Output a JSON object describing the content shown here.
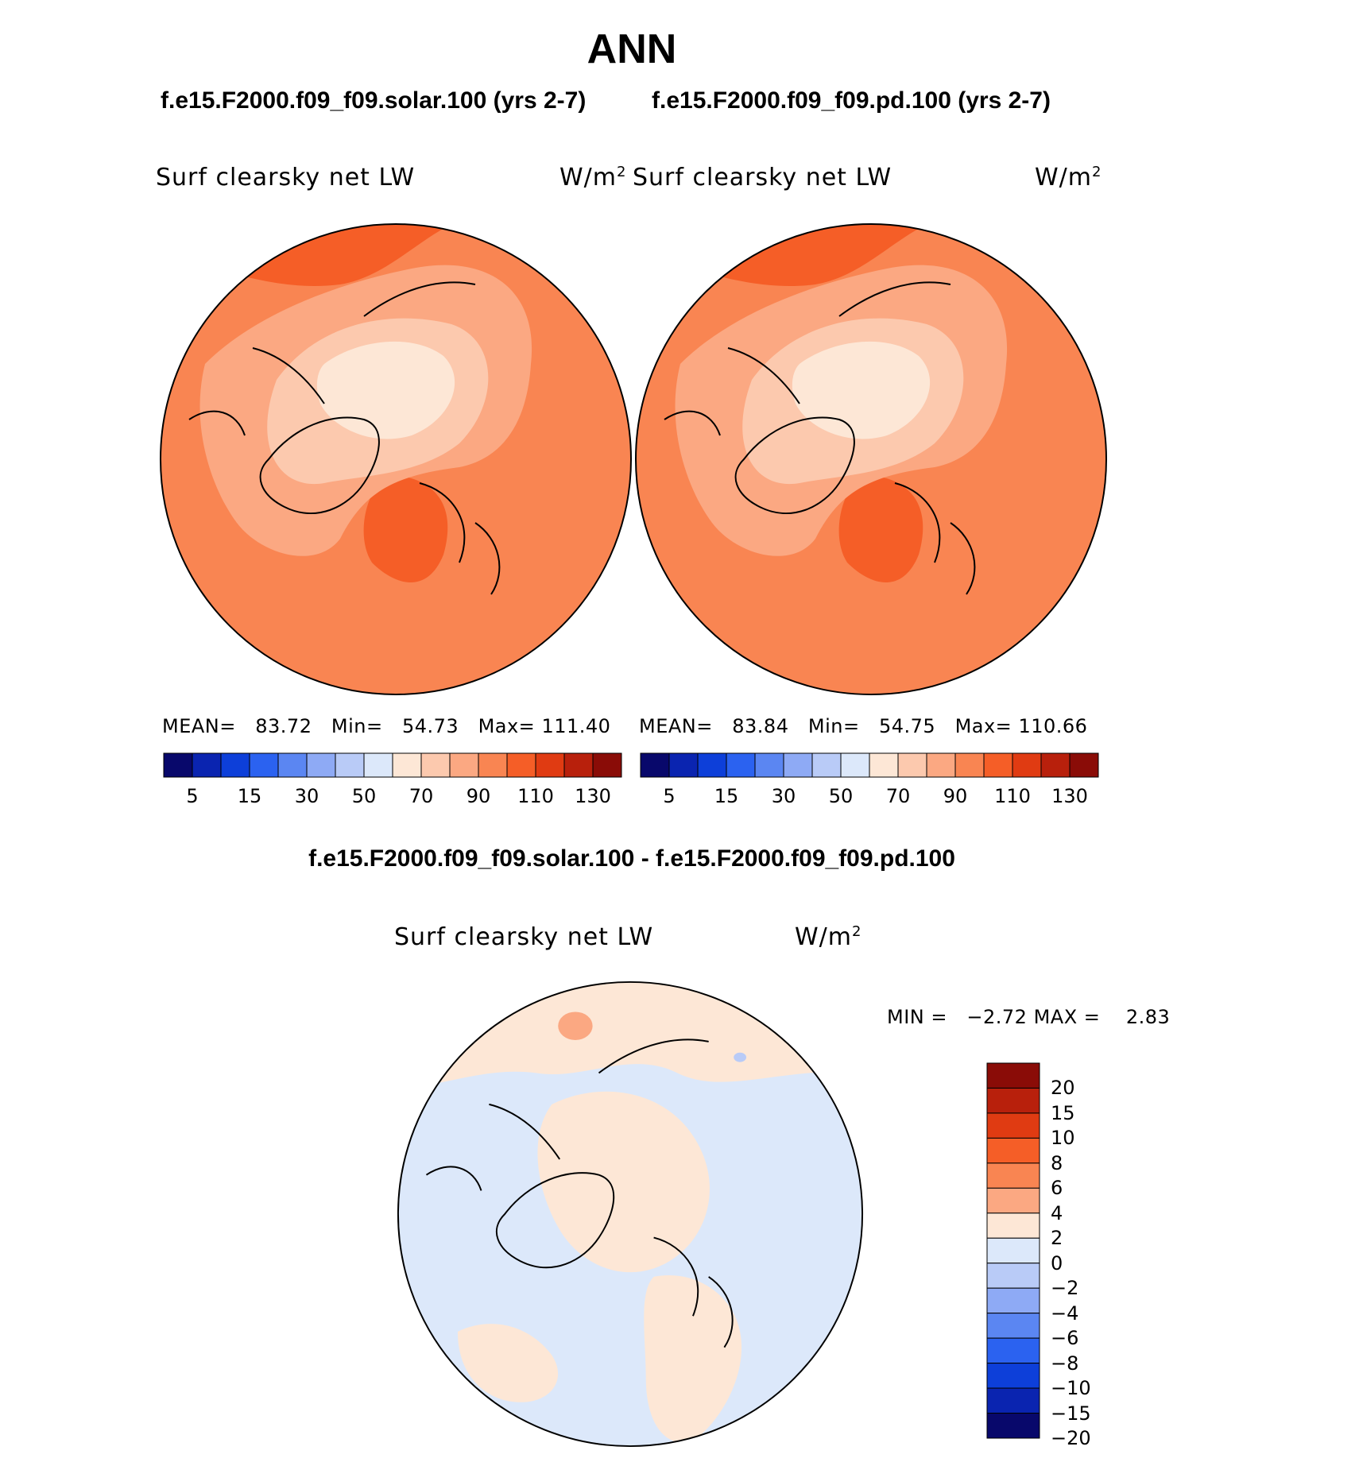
{
  "title": "ANN",
  "panels": {
    "left": {
      "case": "f.e15.F2000.f09_f09.solar.100 (yrs 2-7)",
      "var_name": "Surf clearsky net LW",
      "units": "W/m",
      "units_exp": "2",
      "mean_label": "MEAN=",
      "mean": "83.72",
      "min_label": "Min=",
      "min": "54.73",
      "max_label": "Max=",
      "max": "111.40"
    },
    "right": {
      "case": "f.e15.F2000.f09_f09.pd.100 (yrs 2-7)",
      "var_name": "Surf clearsky net LW",
      "units": "W/m",
      "units_exp": "2",
      "mean_label": "MEAN=",
      "mean": "83.84",
      "min_label": "Min=",
      "min": "54.75",
      "max_label": "Max=",
      "max": "110.66"
    },
    "diff": {
      "case": "f.e15.F2000.f09_f09.solar.100 - f.e15.F2000.f09_f09.pd.100",
      "var_name": "Surf clearsky net LW",
      "units": "W/m",
      "units_exp": "2",
      "min_label": "MIN =",
      "min": "−2.72",
      "max_label": "MAX =",
      "max": "2.83"
    }
  },
  "colorbar_abs": {
    "tick_labels": [
      "5",
      "15",
      "30",
      "50",
      "70",
      "90",
      "110",
      "130"
    ],
    "colors": [
      "#08086b",
      "#0a24b0",
      "#0d3fd9",
      "#2b62f0",
      "#5b86f2",
      "#8eaaf5",
      "#b9cbf7",
      "#dce8fa",
      "#fde7d6",
      "#fcc9ae",
      "#fba882",
      "#f98552",
      "#f55e27",
      "#e03b12",
      "#b8200c",
      "#8a0c07"
    ]
  },
  "colorbar_diff": {
    "tick_labels": [
      "20",
      "15",
      "10",
      "8",
      "6",
      "4",
      "2",
      "0",
      "−2",
      "−4",
      "−6",
      "−8",
      "−10",
      "−15",
      "−20"
    ],
    "colors": [
      "#8a0c07",
      "#b8200c",
      "#e03b12",
      "#f55e27",
      "#f98552",
      "#fba882",
      "#fde7d6",
      "#dce8fa",
      "#b9cbf7",
      "#8eaaf5",
      "#5b86f2",
      "#2b62f0",
      "#0d3fd9",
      "#0a24b0",
      "#08086b"
    ]
  },
  "map_colors": {
    "abs_base": "#f98552",
    "abs_mid": "#fba882",
    "abs_light": "#fcc9ae",
    "abs_lightest": "#fde7d6",
    "abs_dark": "#f55e27",
    "diff_base": "#dce8fa",
    "diff_pos": "#fde7d6",
    "diff_pos2": "#fba882",
    "diff_neg2": "#b9cbf7"
  }
}
